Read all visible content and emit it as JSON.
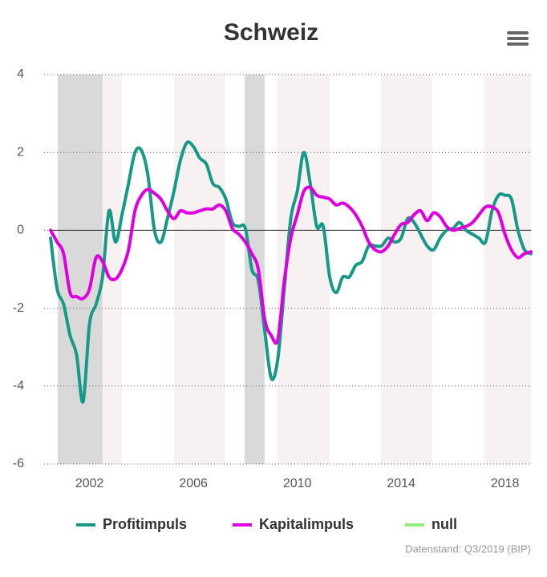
{
  "chart_data": {
    "type": "line",
    "title": "Schweiz",
    "credits": "Datenstand: Q3/2019 (BIP)",
    "x": [
      2000.5,
      2000.75,
      2001,
      2001.25,
      2001.5,
      2001.75,
      2002,
      2002.25,
      2002.5,
      2002.75,
      2003,
      2003.25,
      2003.5,
      2003.75,
      2004,
      2004.25,
      2004.5,
      2004.75,
      2005,
      2005.25,
      2005.5,
      2005.75,
      2006,
      2006.25,
      2006.5,
      2006.75,
      2007,
      2007.25,
      2007.5,
      2007.75,
      2008,
      2008.25,
      2008.5,
      2008.75,
      2009,
      2009.25,
      2009.5,
      2009.75,
      2010,
      2010.25,
      2010.5,
      2010.75,
      2011,
      2011.25,
      2011.5,
      2011.75,
      2012,
      2012.25,
      2012.5,
      2012.75,
      2013,
      2013.25,
      2013.5,
      2013.75,
      2014,
      2014.25,
      2014.5,
      2014.75,
      2015,
      2015.25,
      2015.5,
      2015.75,
      2016,
      2016.25,
      2016.5,
      2016.75,
      2017,
      2017.25,
      2017.5,
      2017.75,
      2018,
      2018.25,
      2018.5,
      2018.75,
      2019
    ],
    "series": [
      {
        "name": "Profitimpuls",
        "color": "#17998a",
        "values": [
          -0.2,
          -1.5,
          -1.9,
          -2.7,
          -3.2,
          -4.4,
          -2.4,
          -1.9,
          -1.2,
          0.5,
          -0.3,
          0.4,
          1.2,
          2.0,
          2.05,
          1.4,
          0.0,
          -0.3,
          0.3,
          1.0,
          1.8,
          2.25,
          2.15,
          1.85,
          1.7,
          1.2,
          1.1,
          0.8,
          0.2,
          0.1,
          0.05,
          -1.0,
          -1.3,
          -2.6,
          -3.8,
          -3.3,
          -1.5,
          0.3,
          1.0,
          2.0,
          1.2,
          0.1,
          0.1,
          -1.2,
          -1.6,
          -1.2,
          -1.2,
          -0.9,
          -0.8,
          -0.4,
          -0.4,
          -0.4,
          -0.2,
          -0.3,
          -0.2,
          0.3,
          0.2,
          -0.1,
          -0.4,
          -0.5,
          -0.2,
          0.0,
          0.05,
          0.2,
          0.0,
          -0.1,
          -0.2,
          -0.3,
          0.5,
          0.9,
          0.9,
          0.8,
          0.0,
          -0.5,
          -0.6
        ]
      },
      {
        "name": "Kapitalimpuls",
        "color": "#dd00dd",
        "values": [
          0.0,
          -0.3,
          -0.6,
          -1.6,
          -1.7,
          -1.75,
          -1.5,
          -0.7,
          -0.8,
          -1.2,
          -1.25,
          -1.0,
          -0.5,
          0.5,
          0.9,
          1.05,
          0.95,
          0.8,
          0.5,
          0.3,
          0.5,
          0.45,
          0.45,
          0.5,
          0.55,
          0.55,
          0.65,
          0.5,
          0.05,
          -0.1,
          -0.3,
          -0.6,
          -1.0,
          -2.3,
          -2.7,
          -2.8,
          -1.3,
          -0.2,
          0.4,
          1.0,
          1.1,
          0.9,
          0.85,
          0.8,
          0.65,
          0.7,
          0.6,
          0.4,
          0.1,
          -0.3,
          -0.5,
          -0.55,
          -0.4,
          -0.1,
          0.15,
          0.2,
          0.4,
          0.5,
          0.25,
          0.45,
          0.35,
          0.1,
          0.0,
          0.05,
          0.1,
          0.2,
          0.4,
          0.6,
          0.6,
          0.45,
          -0.1,
          -0.5,
          -0.7,
          -0.6,
          -0.55
        ]
      },
      {
        "name": "null",
        "color": "#90ed7d",
        "line_color": "#333333",
        "values": [
          0,
          0,
          0,
          0,
          0,
          0,
          0,
          0,
          0,
          0,
          0,
          0,
          0,
          0,
          0,
          0,
          0,
          0,
          0,
          0,
          0,
          0,
          0,
          0,
          0,
          0,
          0,
          0,
          0,
          0,
          0,
          0,
          0,
          0,
          0,
          0,
          0,
          0,
          0,
          0,
          0,
          0,
          0,
          0,
          0,
          0,
          0,
          0,
          0,
          0,
          0,
          0,
          0,
          0,
          0,
          0,
          0,
          0,
          0,
          0,
          0,
          0,
          0,
          0,
          0,
          0,
          0,
          0,
          0,
          0,
          0,
          0,
          0,
          0,
          0
        ]
      }
    ],
    "bands": [
      {
        "from": 2000.77,
        "to": 2002.5,
        "color": "#d9d9d9"
      },
      {
        "from": 2002.5,
        "to": 2003.24,
        "color": "#f8f1f1"
      },
      {
        "from": 2005.25,
        "to": 2007.22,
        "color": "#f8f1f1"
      },
      {
        "from": 2007.97,
        "to": 2008.74,
        "color": "#d9d9d9"
      },
      {
        "from": 2009.23,
        "to": 2011.24,
        "color": "#f8f1f1"
      },
      {
        "from": 2013.21,
        "to": 2015.19,
        "color": "#f8f1f1"
      },
      {
        "from": 2017.19,
        "to": 2019.0,
        "color": "#f8f1f1"
      }
    ],
    "xlim": [
      2000.25,
      2019.0
    ],
    "xticks": [
      2002,
      2006,
      2010,
      2014,
      2018
    ],
    "ylim": [
      -6,
      4
    ],
    "yticks": [
      -6,
      -4,
      -2,
      0,
      2,
      4
    ],
    "grid": true
  }
}
